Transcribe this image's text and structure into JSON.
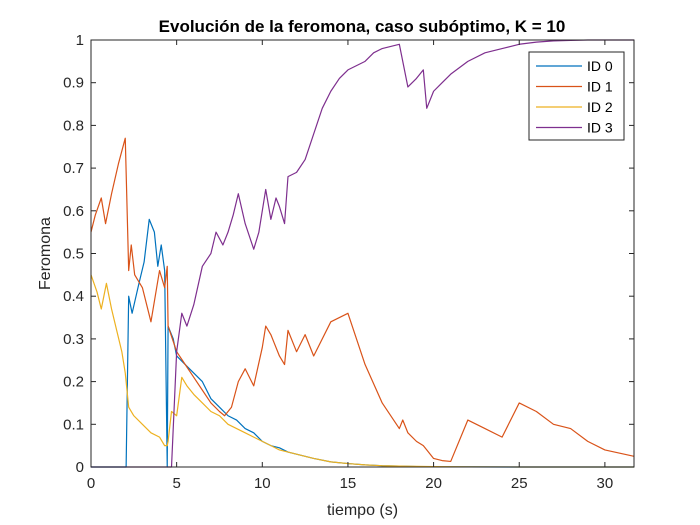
{
  "chart_data": {
    "type": "line",
    "title": "Evolución de la feromona, caso subóptimo, K = 10",
    "xlabel": "tiempo (s)",
    "ylabel": "Feromona",
    "xlim": [
      0,
      31.7
    ],
    "ylim": [
      0,
      1
    ],
    "xticks": [
      0,
      5,
      10,
      15,
      20,
      25,
      30
    ],
    "xtick_labels": [
      "0",
      "5",
      "10",
      "15",
      "20",
      "25",
      "30"
    ],
    "yticks": [
      0,
      0.1,
      0.2,
      0.3,
      0.4,
      0.5,
      0.6,
      0.7,
      0.8,
      0.9,
      1
    ],
    "ytick_labels": [
      "0",
      "0.1",
      "0.2",
      "0.3",
      "0.4",
      "0.5",
      "0.6",
      "0.7",
      "0.8",
      "0.9",
      "1"
    ],
    "grid": false,
    "legend_position": "top-right",
    "series": [
      {
        "name": "ID 0",
        "color": "#0072BD",
        "x": [
          0,
          2,
          2.05,
          2.2,
          2.4,
          2.8,
          3.1,
          3.4,
          3.7,
          3.9,
          4.1,
          4.3,
          4.45,
          4.5,
          4.8,
          5.0,
          5.5,
          6.0,
          6.5,
          7.0,
          7.5,
          8.0,
          8.5,
          9.0,
          9.5,
          10.0,
          10.5,
          11.0,
          11.5,
          12.0,
          13.0,
          14.0,
          15.0,
          16.0,
          17.0,
          18.0,
          19.0,
          20.0,
          22.0,
          25.0,
          28.0,
          31.7
        ],
        "y": [
          0,
          0,
          0.0,
          0.4,
          0.36,
          0.43,
          0.48,
          0.58,
          0.55,
          0.47,
          0.52,
          0.46,
          0.0,
          0.33,
          0.3,
          0.26,
          0.24,
          0.22,
          0.2,
          0.16,
          0.14,
          0.12,
          0.11,
          0.09,
          0.08,
          0.06,
          0.05,
          0.045,
          0.035,
          0.03,
          0.02,
          0.012,
          0.008,
          0.005,
          0.003,
          0.002,
          0.001,
          0.0005,
          0.0002,
          0,
          0,
          0
        ]
      },
      {
        "name": "ID 1",
        "color": "#D95319",
        "x": [
          0,
          0.25,
          0.6,
          0.85,
          1.2,
          1.6,
          2.0,
          2.2,
          2.35,
          2.55,
          3.0,
          3.5,
          4.0,
          4.3,
          4.45,
          4.5,
          5.0,
          5.5,
          6.0,
          6.5,
          7.0,
          7.5,
          7.8,
          8.2,
          8.6,
          9.0,
          9.5,
          10.0,
          10.2,
          10.5,
          10.7,
          11.0,
          11.3,
          11.5,
          12.0,
          12.5,
          13.0,
          14.0,
          15.0,
          16.0,
          17.0,
          18.0,
          18.2,
          18.5,
          19.0,
          19.4,
          19.6,
          20.0,
          20.5,
          21.0,
          22.0,
          23.0,
          24.0,
          25.0,
          26.0,
          27.0,
          28.0,
          29.0,
          30.0,
          31.7
        ],
        "y": [
          0.55,
          0.59,
          0.63,
          0.57,
          0.64,
          0.71,
          0.77,
          0.46,
          0.52,
          0.45,
          0.42,
          0.34,
          0.46,
          0.42,
          0.47,
          0.33,
          0.27,
          0.24,
          0.21,
          0.18,
          0.15,
          0.13,
          0.12,
          0.14,
          0.2,
          0.23,
          0.19,
          0.28,
          0.33,
          0.31,
          0.29,
          0.26,
          0.24,
          0.32,
          0.27,
          0.31,
          0.26,
          0.34,
          0.36,
          0.24,
          0.15,
          0.09,
          0.11,
          0.08,
          0.06,
          0.05,
          0.04,
          0.02,
          0.015,
          0.013,
          0.11,
          0.09,
          0.07,
          0.15,
          0.13,
          0.1,
          0.09,
          0.06,
          0.04,
          0.025
        ]
      },
      {
        "name": "ID 2",
        "color": "#EDB120",
        "x": [
          0,
          0.35,
          0.6,
          0.9,
          1.2,
          1.5,
          1.8,
          2.0,
          2.2,
          2.5,
          3.0,
          3.5,
          4.0,
          4.3,
          4.45,
          4.5,
          4.7,
          5.0,
          5.3,
          5.6,
          6.0,
          6.5,
          7.0,
          7.5,
          8.0,
          8.5,
          9.0,
          9.5,
          10.0,
          10.5,
          11.0,
          11.5,
          12.0,
          13.0,
          14.0,
          15.0,
          16.0,
          17.0,
          18.0,
          20.0,
          22.0,
          25.0,
          28.0,
          31.7
        ],
        "y": [
          0.45,
          0.41,
          0.37,
          0.43,
          0.37,
          0.32,
          0.27,
          0.22,
          0.14,
          0.12,
          0.1,
          0.08,
          0.07,
          0.05,
          0.05,
          0.06,
          0.13,
          0.12,
          0.21,
          0.19,
          0.17,
          0.15,
          0.13,
          0.12,
          0.1,
          0.09,
          0.08,
          0.07,
          0.06,
          0.05,
          0.04,
          0.035,
          0.03,
          0.02,
          0.012,
          0.008,
          0.005,
          0.003,
          0.002,
          0.001,
          0.0005,
          0,
          0,
          0
        ]
      },
      {
        "name": "ID 3",
        "color": "#7E2F8E",
        "x": [
          0,
          4.4,
          4.45,
          4.7,
          5.0,
          5.3,
          5.6,
          6.0,
          6.5,
          7.0,
          7.3,
          7.7,
          8.0,
          8.3,
          8.6,
          9.0,
          9.5,
          9.8,
          10.0,
          10.2,
          10.5,
          10.8,
          11.0,
          11.3,
          11.5,
          12.0,
          12.5,
          13.0,
          13.5,
          14.0,
          14.5,
          15.0,
          15.5,
          16.0,
          16.5,
          17.0,
          17.5,
          18.0,
          18.5,
          19.0,
          19.4,
          19.6,
          20.0,
          20.5,
          21.0,
          22.0,
          23.0,
          24.0,
          25.0,
          26.0,
          27.0,
          28.0,
          29.0,
          30.0,
          31.7
        ],
        "y": [
          0,
          0,
          0.0,
          0.0,
          0.27,
          0.36,
          0.33,
          0.38,
          0.47,
          0.5,
          0.55,
          0.52,
          0.55,
          0.59,
          0.64,
          0.57,
          0.51,
          0.55,
          0.6,
          0.65,
          0.58,
          0.63,
          0.61,
          0.57,
          0.68,
          0.69,
          0.72,
          0.78,
          0.84,
          0.88,
          0.91,
          0.93,
          0.94,
          0.95,
          0.97,
          0.98,
          0.985,
          0.99,
          0.89,
          0.91,
          0.93,
          0.84,
          0.88,
          0.9,
          0.92,
          0.95,
          0.97,
          0.98,
          0.99,
          0.995,
          0.998,
          0.999,
          1.0,
          1.0,
          1.0
        ]
      }
    ]
  }
}
